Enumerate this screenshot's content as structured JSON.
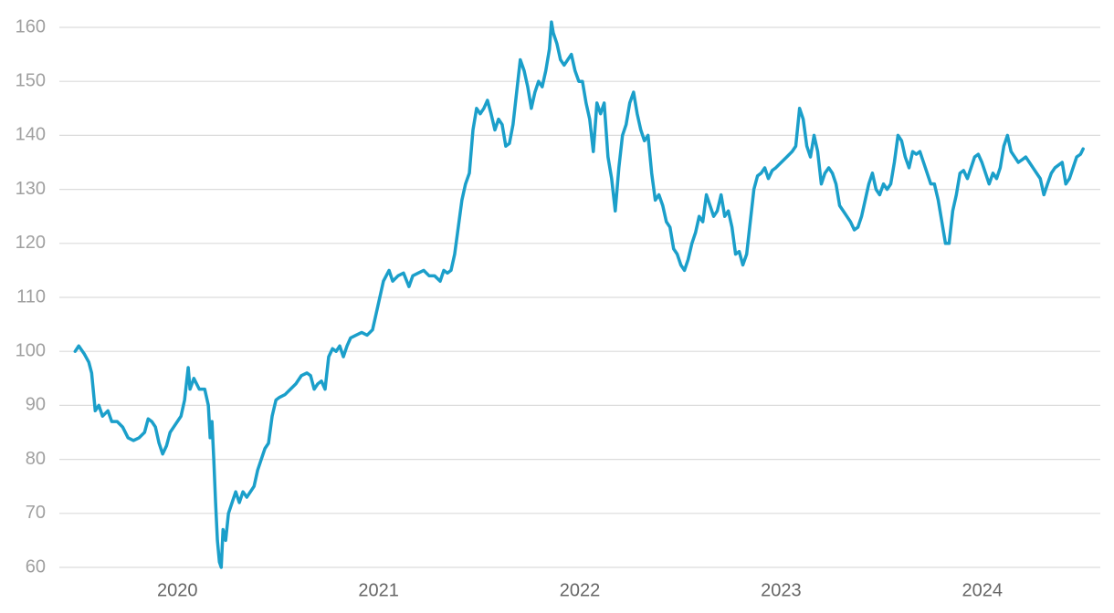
{
  "chart_data": {
    "type": "line",
    "color": "#1b9fca",
    "grid": true,
    "xlim": [
      2019.4,
      2024.6
    ],
    "xticks": [
      2020,
      2021,
      2022,
      2023,
      2024
    ],
    "ylim": [
      60,
      160
    ],
    "yticks": [
      60,
      70,
      80,
      90,
      100,
      110,
      120,
      130,
      140,
      150,
      160
    ],
    "x": [
      2019.492,
      2019.51,
      2019.538,
      2019.56,
      2019.574,
      2019.592,
      2019.61,
      2019.628,
      2019.655,
      2019.674,
      2019.701,
      2019.728,
      2019.755,
      2019.782,
      2019.81,
      2019.837,
      2019.855,
      2019.873,
      2019.891,
      2019.909,
      2019.927,
      2019.946,
      2019.964,
      2019.982,
      2020.0,
      2020.018,
      2020.036,
      2020.054,
      2020.063,
      2020.082,
      2020.109,
      2020.136,
      2020.154,
      2020.163,
      2020.172,
      2020.181,
      2020.19,
      2020.199,
      2020.209,
      2020.218,
      2020.227,
      2020.24,
      2020.254,
      2020.272,
      2020.29,
      2020.308,
      2020.326,
      2020.345,
      2020.363,
      2020.381,
      2020.399,
      2020.417,
      2020.435,
      2020.453,
      2020.471,
      2020.49,
      2020.508,
      2020.535,
      2020.562,
      2020.589,
      2020.616,
      2020.644,
      2020.662,
      2020.68,
      2020.698,
      2020.716,
      2020.734,
      2020.752,
      2020.771,
      2020.789,
      2020.807,
      2020.825,
      2020.843,
      2020.861,
      2020.888,
      2020.916,
      2020.943,
      2020.97,
      2020.988,
      2021.006,
      2021.024,
      2021.052,
      2021.07,
      2021.097,
      2021.124,
      2021.151,
      2021.17,
      2021.197,
      2021.224,
      2021.251,
      2021.278,
      2021.306,
      2021.324,
      2021.342,
      2021.36,
      2021.378,
      2021.396,
      2021.414,
      2021.432,
      2021.451,
      2021.469,
      2021.487,
      2021.505,
      2021.523,
      2021.541,
      2021.559,
      2021.578,
      2021.596,
      2021.614,
      2021.632,
      2021.65,
      2021.668,
      2021.686,
      2021.704,
      2021.723,
      2021.741,
      2021.759,
      2021.777,
      2021.795,
      2021.813,
      2021.831,
      2021.849,
      2021.859,
      2021.868,
      2021.886,
      2021.904,
      2021.922,
      2021.94,
      2021.958,
      2021.976,
      2021.995,
      2022.013,
      2022.031,
      2022.049,
      2022.067,
      2022.085,
      2022.103,
      2022.121,
      2022.14,
      2022.158,
      2022.176,
      2022.194,
      2022.212,
      2022.23,
      2022.248,
      2022.267,
      2022.285,
      2022.303,
      2022.321,
      2022.339,
      2022.357,
      2022.375,
      2022.393,
      2022.412,
      2022.43,
      2022.448,
      2022.466,
      2022.484,
      2022.502,
      2022.52,
      2022.538,
      2022.557,
      2022.575,
      2022.593,
      2022.611,
      2022.629,
      2022.647,
      2022.665,
      2022.683,
      2022.702,
      2022.72,
      2022.738,
      2022.756,
      2022.774,
      2022.792,
      2022.81,
      2022.829,
      2022.847,
      2022.865,
      2022.883,
      2022.901,
      2022.919,
      2022.937,
      2022.956,
      2022.974,
      2023.001,
      2023.028,
      2023.055,
      2023.073,
      2023.092,
      2023.11,
      2023.128,
      2023.146,
      2023.164,
      2023.182,
      2023.2,
      2023.218,
      2023.237,
      2023.255,
      2023.273,
      2023.291,
      2023.309,
      2023.327,
      2023.345,
      2023.364,
      2023.382,
      2023.4,
      2023.418,
      2023.436,
      2023.454,
      2023.472,
      2023.49,
      2023.509,
      2023.527,
      2023.545,
      2023.563,
      2023.581,
      2023.599,
      2023.617,
      2023.636,
      2023.654,
      2023.672,
      2023.69,
      2023.708,
      2023.726,
      2023.744,
      2023.762,
      2023.781,
      2023.799,
      2023.817,
      2023.835,
      2023.853,
      2023.871,
      2023.889,
      2023.907,
      2023.926,
      2023.944,
      2023.962,
      2023.98,
      2023.998,
      2024.016,
      2024.034,
      2024.053,
      2024.071,
      2024.089,
      2024.107,
      2024.125,
      2024.143,
      2024.161,
      2024.179,
      2024.198,
      2024.216,
      2024.234,
      2024.252,
      2024.27,
      2024.288,
      2024.306,
      2024.324,
      2024.343,
      2024.361,
      2024.379,
      2024.397,
      2024.415,
      2024.433,
      2024.451,
      2024.469,
      2024.488,
      2024.501
    ],
    "values": [
      100,
      101,
      99.5,
      98,
      96,
      89,
      90,
      88,
      89,
      87,
      87,
      86,
      84,
      83.5,
      84,
      85,
      87.5,
      87,
      86,
      83,
      81,
      82.5,
      85,
      86,
      87,
      88,
      91,
      97,
      93,
      95,
      93,
      93,
      90,
      84,
      87,
      80,
      72,
      65,
      61,
      60,
      67,
      65,
      70,
      72,
      74,
      72,
      74,
      73,
      74,
      75,
      78,
      80,
      82,
      83,
      88,
      91,
      91.5,
      92,
      93,
      94,
      95.5,
      96,
      95.5,
      93,
      94,
      94.5,
      93,
      99,
      100.5,
      100,
      101,
      99,
      101,
      102.5,
      103,
      103.5,
      103,
      104,
      107,
      110,
      113,
      115,
      113,
      114,
      114.5,
      112,
      114,
      114.5,
      115,
      114,
      114,
      113,
      115,
      114.5,
      115,
      118,
      123,
      128,
      131,
      133,
      141,
      145,
      144,
      145,
      146.5,
      144,
      141,
      143,
      142,
      138,
      138.5,
      142,
      148,
      154,
      152,
      149,
      145,
      148,
      150,
      149,
      152,
      156,
      161,
      159,
      157,
      154,
      153,
      154,
      155,
      152,
      150,
      150,
      146,
      143,
      137,
      146,
      144,
      146,
      136,
      132,
      126,
      134,
      140,
      142,
      146,
      148,
      144,
      141,
      139,
      140,
      133,
      128,
      129,
      127,
      124,
      123,
      119,
      118,
      116,
      115,
      117,
      120,
      122,
      125,
      124,
      129,
      127,
      125,
      126,
      129,
      125,
      126,
      123,
      118,
      118.5,
      116,
      118,
      124,
      130,
      132.5,
      133,
      134,
      132,
      133.5,
      134,
      135,
      136,
      137,
      138,
      145,
      143,
      138,
      136,
      140,
      137,
      131,
      133,
      134,
      133,
      131,
      127,
      126,
      125,
      124,
      122.5,
      123,
      125,
      128,
      131,
      133,
      130,
      129,
      131,
      130,
      131,
      135,
      140,
      139,
      136,
      134,
      137,
      136.5,
      137,
      135,
      133,
      131,
      131,
      128,
      124,
      120,
      120,
      126,
      129,
      133,
      133.5,
      132,
      134,
      136,
      136.5,
      135,
      133,
      131,
      133,
      132,
      134,
      138,
      140,
      137,
      136,
      135,
      135.5,
      136,
      135,
      134,
      133,
      132,
      129,
      131,
      133,
      134,
      134.5,
      135,
      131,
      132,
      134,
      136,
      136.5,
      137.5
    ]
  }
}
